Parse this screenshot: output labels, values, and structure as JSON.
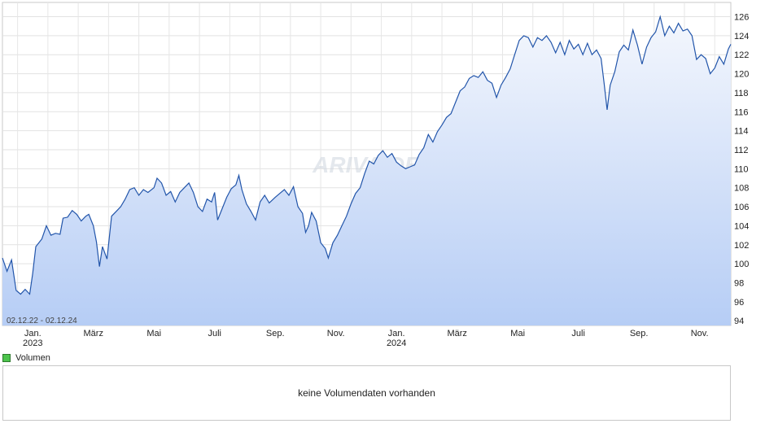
{
  "chart_data": {
    "type": "area",
    "date_range_label": "02.12.22 - 02.12.24",
    "watermark": "ARIVA.DE",
    "y_ticks": [
      94,
      96,
      98,
      100,
      102,
      104,
      106,
      108,
      110,
      112,
      114,
      116,
      118,
      120,
      122,
      124,
      126
    ],
    "ylim": [
      93.5,
      127.5
    ],
    "x_ticks": [
      {
        "label": "Jan.",
        "year": "2023",
        "x": 1.0
      },
      {
        "label": "März",
        "year": "",
        "x": 3.0
      },
      {
        "label": "Mai",
        "year": "",
        "x": 5.0
      },
      {
        "label": "Juli",
        "year": "",
        "x": 7.0
      },
      {
        "label": "Sep.",
        "year": "",
        "x": 9.0
      },
      {
        "label": "Nov.",
        "year": "",
        "x": 11.0
      },
      {
        "label": "Jan.",
        "year": "2024",
        "x": 13.0
      },
      {
        "label": "März",
        "year": "",
        "x": 15.0
      },
      {
        "label": "Mai",
        "year": "",
        "x": 17.0
      },
      {
        "label": "Juli",
        "year": "",
        "x": 19.0
      },
      {
        "label": "Sep.",
        "year": "",
        "x": 21.0
      },
      {
        "label": "Nov.",
        "year": "",
        "x": 23.0
      }
    ],
    "xlim": [
      0.0,
      24.03
    ],
    "series": [
      {
        "name": "",
        "color": "#2255aa",
        "points": [
          [
            0.0,
            100.6
          ],
          [
            0.15,
            99.2
          ],
          [
            0.3,
            100.4
          ],
          [
            0.45,
            97.2
          ],
          [
            0.6,
            96.8
          ],
          [
            0.75,
            97.3
          ],
          [
            0.9,
            96.8
          ],
          [
            1.0,
            99.0
          ],
          [
            1.1,
            101.8
          ],
          [
            1.3,
            102.6
          ],
          [
            1.45,
            104.0
          ],
          [
            1.6,
            103.0
          ],
          [
            1.75,
            103.2
          ],
          [
            1.9,
            103.1
          ],
          [
            2.0,
            104.8
          ],
          [
            2.15,
            104.9
          ],
          [
            2.3,
            105.6
          ],
          [
            2.45,
            105.2
          ],
          [
            2.6,
            104.5
          ],
          [
            2.75,
            105.0
          ],
          [
            2.85,
            105.2
          ],
          [
            3.0,
            104.0
          ],
          [
            3.1,
            102.3
          ],
          [
            3.2,
            99.7
          ],
          [
            3.3,
            101.8
          ],
          [
            3.45,
            100.5
          ],
          [
            3.6,
            105.0
          ],
          [
            3.75,
            105.5
          ],
          [
            3.9,
            106.0
          ],
          [
            4.05,
            106.8
          ],
          [
            4.2,
            107.8
          ],
          [
            4.35,
            108.0
          ],
          [
            4.5,
            107.2
          ],
          [
            4.65,
            107.8
          ],
          [
            4.8,
            107.5
          ],
          [
            5.0,
            108.0
          ],
          [
            5.1,
            109.0
          ],
          [
            5.25,
            108.5
          ],
          [
            5.4,
            107.2
          ],
          [
            5.55,
            107.6
          ],
          [
            5.7,
            106.5
          ],
          [
            5.85,
            107.5
          ],
          [
            6.0,
            108.0
          ],
          [
            6.15,
            108.5
          ],
          [
            6.3,
            107.5
          ],
          [
            6.45,
            106.0
          ],
          [
            6.6,
            105.5
          ],
          [
            6.75,
            106.8
          ],
          [
            6.9,
            106.5
          ],
          [
            7.0,
            107.5
          ],
          [
            7.1,
            104.6
          ],
          [
            7.25,
            105.8
          ],
          [
            7.4,
            107.0
          ],
          [
            7.55,
            107.9
          ],
          [
            7.7,
            108.3
          ],
          [
            7.8,
            109.3
          ],
          [
            7.9,
            107.8
          ],
          [
            8.05,
            106.3
          ],
          [
            8.2,
            105.5
          ],
          [
            8.35,
            104.6
          ],
          [
            8.5,
            106.5
          ],
          [
            8.65,
            107.2
          ],
          [
            8.8,
            106.4
          ],
          [
            9.0,
            107.0
          ],
          [
            9.15,
            107.4
          ],
          [
            9.3,
            107.8
          ],
          [
            9.45,
            107.2
          ],
          [
            9.6,
            108.1
          ],
          [
            9.75,
            106.0
          ],
          [
            9.9,
            105.3
          ],
          [
            10.0,
            103.3
          ],
          [
            10.1,
            104.0
          ],
          [
            10.2,
            105.4
          ],
          [
            10.35,
            104.5
          ],
          [
            10.5,
            102.2
          ],
          [
            10.65,
            101.6
          ],
          [
            10.75,
            100.6
          ],
          [
            10.9,
            102.2
          ],
          [
            11.05,
            103.0
          ],
          [
            11.2,
            104.0
          ],
          [
            11.35,
            105.0
          ],
          [
            11.5,
            106.3
          ],
          [
            11.65,
            107.4
          ],
          [
            11.8,
            108.0
          ],
          [
            11.95,
            109.5
          ],
          [
            12.1,
            110.8
          ],
          [
            12.25,
            110.5
          ],
          [
            12.4,
            111.4
          ],
          [
            12.55,
            111.9
          ],
          [
            12.7,
            111.2
          ],
          [
            12.85,
            111.6
          ],
          [
            13.0,
            110.7
          ],
          [
            13.15,
            110.3
          ],
          [
            13.3,
            110.0
          ],
          [
            13.45,
            110.2
          ],
          [
            13.6,
            110.4
          ],
          [
            13.75,
            111.5
          ],
          [
            13.9,
            112.2
          ],
          [
            14.05,
            113.6
          ],
          [
            14.2,
            112.8
          ],
          [
            14.35,
            113.9
          ],
          [
            14.5,
            114.6
          ],
          [
            14.65,
            115.4
          ],
          [
            14.8,
            115.8
          ],
          [
            14.95,
            117.0
          ],
          [
            15.1,
            118.2
          ],
          [
            15.25,
            118.6
          ],
          [
            15.4,
            119.5
          ],
          [
            15.55,
            119.8
          ],
          [
            15.7,
            119.6
          ],
          [
            15.85,
            120.2
          ],
          [
            16.0,
            119.3
          ],
          [
            16.15,
            119.0
          ],
          [
            16.3,
            117.5
          ],
          [
            16.45,
            118.8
          ],
          [
            16.6,
            119.6
          ],
          [
            16.75,
            120.5
          ],
          [
            16.9,
            122.0
          ],
          [
            17.05,
            123.5
          ],
          [
            17.2,
            124.0
          ],
          [
            17.35,
            123.8
          ],
          [
            17.5,
            122.8
          ],
          [
            17.65,
            123.8
          ],
          [
            17.8,
            123.5
          ],
          [
            17.95,
            124.0
          ],
          [
            18.1,
            123.3
          ],
          [
            18.25,
            122.2
          ],
          [
            18.4,
            123.3
          ],
          [
            18.55,
            122.0
          ],
          [
            18.7,
            123.5
          ],
          [
            18.85,
            122.6
          ],
          [
            19.0,
            123.1
          ],
          [
            19.15,
            122.0
          ],
          [
            19.3,
            123.2
          ],
          [
            19.45,
            122.0
          ],
          [
            19.6,
            122.5
          ],
          [
            19.75,
            121.6
          ],
          [
            19.85,
            119.0
          ],
          [
            19.95,
            116.2
          ],
          [
            20.05,
            118.8
          ],
          [
            20.2,
            120.2
          ],
          [
            20.35,
            122.3
          ],
          [
            20.5,
            123.0
          ],
          [
            20.65,
            122.5
          ],
          [
            20.8,
            124.6
          ],
          [
            20.95,
            123.0
          ],
          [
            21.1,
            121.0
          ],
          [
            21.25,
            122.8
          ],
          [
            21.4,
            123.8
          ],
          [
            21.55,
            124.4
          ],
          [
            21.7,
            126.0
          ],
          [
            21.85,
            124.0
          ],
          [
            22.0,
            125.0
          ],
          [
            22.15,
            124.3
          ],
          [
            22.3,
            125.3
          ],
          [
            22.45,
            124.5
          ],
          [
            22.6,
            124.7
          ],
          [
            22.75,
            124.0
          ],
          [
            22.9,
            121.5
          ],
          [
            23.05,
            122.0
          ],
          [
            23.2,
            121.6
          ],
          [
            23.35,
            120.0
          ],
          [
            23.5,
            120.6
          ],
          [
            23.65,
            121.8
          ],
          [
            23.8,
            121.0
          ],
          [
            23.95,
            122.6
          ],
          [
            24.03,
            123.1
          ]
        ]
      }
    ],
    "grid": true,
    "fill": true,
    "line_color": "#2255aa",
    "fill_top_color": "#f4f7fd",
    "fill_bottom_color": "#b6cdf5"
  },
  "legend": {
    "volume_label": "Volumen",
    "volume_color": "#4cc44c"
  },
  "volume_panel": {
    "message": "keine Volumendaten vorhanden"
  }
}
